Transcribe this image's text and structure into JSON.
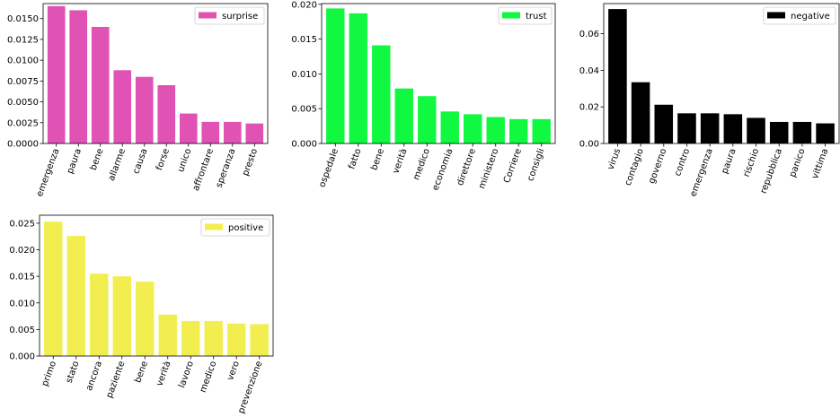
{
  "chart_data": [
    {
      "type": "bar",
      "series": [
        {
          "name": "surprise",
          "color": "#e052b4",
          "categories": [
            "emergenza",
            "paura",
            "bene",
            "allarme",
            "causa",
            "forse",
            "unico",
            "affrontare",
            "speranza",
            "presto"
          ],
          "values": [
            0.0165,
            0.016,
            0.014,
            0.0088,
            0.008,
            0.007,
            0.0036,
            0.0026,
            0.0026,
            0.0024
          ]
        }
      ],
      "ylim": [
        0,
        0.0168
      ],
      "yticks": [
        "0.0000",
        "0.0025",
        "0.0050",
        "0.0075",
        "0.0100",
        "0.0125",
        "0.0150"
      ],
      "ytick_values": [
        0,
        0.0025,
        0.005,
        0.0075,
        0.01,
        0.0125,
        0.015
      ],
      "legend_position": "upper right"
    },
    {
      "type": "bar",
      "series": [
        {
          "name": "trust",
          "color": "#10f840",
          "categories": [
            "ospedale",
            "fatto",
            "bene",
            "verità",
            "medico",
            "economia",
            "direttore",
            "ministero",
            "Corriere",
            "consigli"
          ],
          "values": [
            0.0194,
            0.0187,
            0.0141,
            0.0079,
            0.0068,
            0.0046,
            0.0042,
            0.0038,
            0.0035,
            0.0035
          ]
        }
      ],
      "ylim": [
        0,
        0.0201
      ],
      "yticks": [
        "0.000",
        "0.005",
        "0.010",
        "0.015",
        "0.020"
      ],
      "ytick_values": [
        0,
        0.005,
        0.01,
        0.015,
        0.02
      ],
      "legend_position": "upper right"
    },
    {
      "type": "bar",
      "series": [
        {
          "name": "negative",
          "color": "#000000",
          "categories": [
            "virus",
            "contagio",
            "governo",
            "contro",
            "emergenza",
            "paura",
            "rischio",
            "repubblica",
            "panico",
            "vittima"
          ],
          "values": [
            0.0735,
            0.0335,
            0.0212,
            0.0165,
            0.0165,
            0.016,
            0.014,
            0.0118,
            0.0118,
            0.011
          ]
        }
      ],
      "ylim": [
        0,
        0.0765
      ],
      "yticks": [
        "0.00",
        "0.02",
        "0.04",
        "0.06"
      ],
      "ytick_values": [
        0,
        0.02,
        0.04,
        0.06
      ],
      "legend_position": "upper right"
    },
    {
      "type": "bar",
      "series": [
        {
          "name": "positive",
          "color": "#f2ee50",
          "categories": [
            "primo",
            "stato",
            "ancora",
            "paziente",
            "bene",
            "verità",
            "lavoro",
            "medico",
            "vero",
            "prevenzione"
          ],
          "values": [
            0.0253,
            0.0226,
            0.0155,
            0.015,
            0.014,
            0.0078,
            0.0066,
            0.0066,
            0.0061,
            0.006
          ]
        }
      ],
      "ylim": [
        0,
        0.0265
      ],
      "yticks": [
        "0.000",
        "0.005",
        "0.010",
        "0.015",
        "0.020",
        "0.025"
      ],
      "ytick_values": [
        0,
        0.005,
        0.01,
        0.015,
        0.02,
        0.025
      ],
      "legend_position": "upper right"
    }
  ]
}
